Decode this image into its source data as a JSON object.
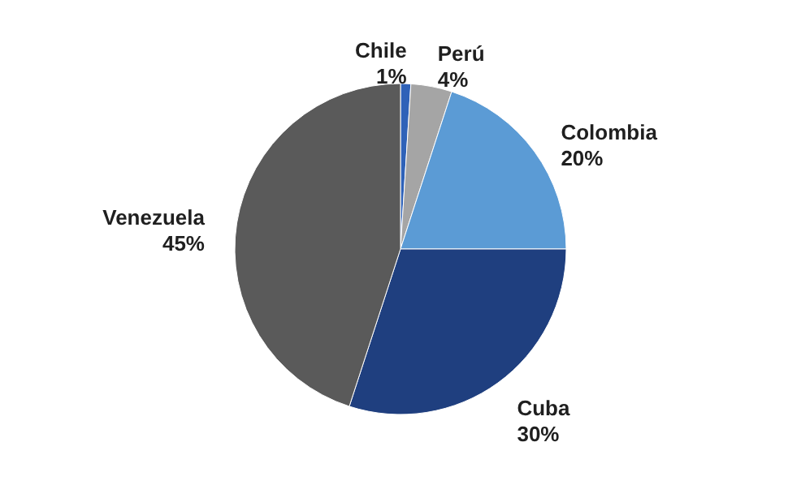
{
  "chart_data": {
    "type": "pie",
    "categories": [
      "Chile",
      "Perú",
      "Colombia",
      "Cuba",
      "Venezuela"
    ],
    "values": [
      1,
      4,
      20,
      30,
      45
    ],
    "colors": [
      "#2f62b8",
      "#a5a5a5",
      "#5b9bd5",
      "#1f3f7f",
      "#5a5a5a"
    ],
    "value_labels": [
      "1%",
      "4%",
      "20%",
      "30%",
      "45%"
    ],
    "legend": false
  }
}
